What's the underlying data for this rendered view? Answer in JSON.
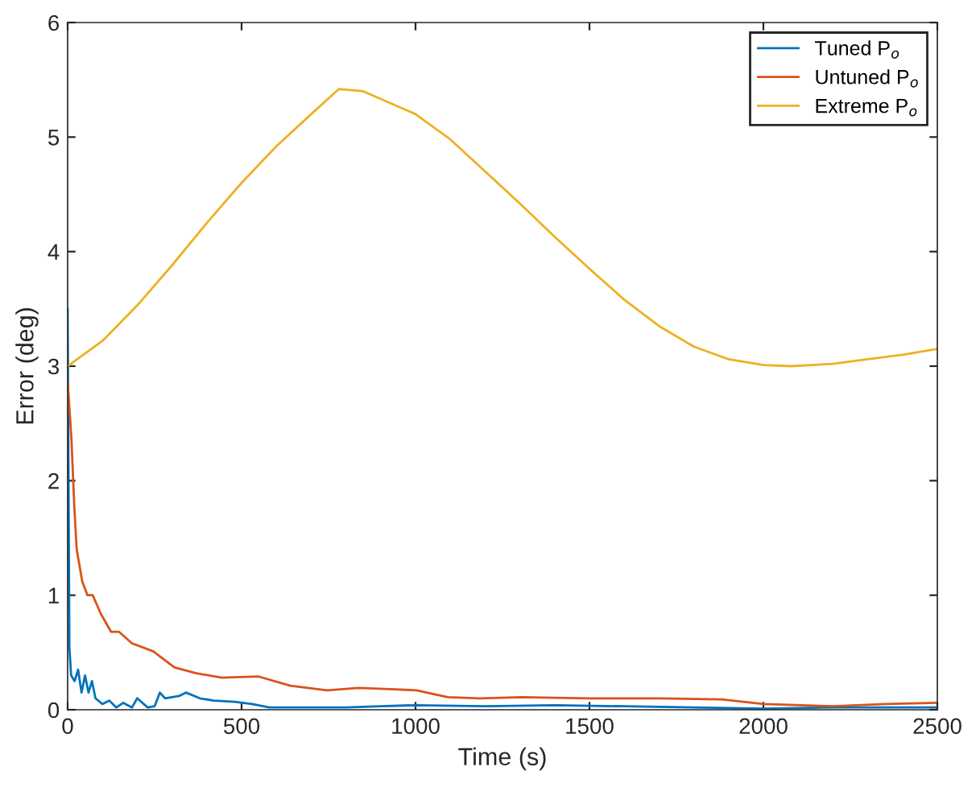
{
  "chart_data": {
    "type": "line",
    "xlabel": "Time (s)",
    "ylabel": "Error (deg)",
    "xlim": [
      0,
      2500
    ],
    "ylim": [
      0,
      6
    ],
    "xticks": [
      0,
      500,
      1000,
      1500,
      2000,
      2500
    ],
    "yticks": [
      0,
      1,
      2,
      3,
      4,
      5,
      6
    ],
    "grid": false,
    "legend": "top right",
    "line_style": "solid",
    "marker": "none",
    "series": [
      {
        "name": "Tuned P$_{o}$",
        "color": "#0072bd",
        "x": [
          0,
          5,
          10,
          20,
          30,
          40,
          50,
          60,
          70,
          80,
          100,
          120,
          140,
          160,
          185,
          200,
          230,
          250,
          265,
          280,
          320,
          340,
          380,
          420,
          480,
          530,
          580,
          700,
          800,
          900,
          1000,
          1200,
          1400,
          1600,
          1800,
          2000,
          2200,
          2500
        ],
        "values": [
          3.5,
          0.55,
          0.3,
          0.25,
          0.35,
          0.15,
          0.3,
          0.15,
          0.25,
          0.1,
          0.05,
          0.08,
          0.02,
          0.06,
          0.02,
          0.1,
          0.02,
          0.03,
          0.15,
          0.1,
          0.12,
          0.15,
          0.1,
          0.08,
          0.07,
          0.05,
          0.02,
          0.02,
          0.02,
          0.03,
          0.04,
          0.03,
          0.04,
          0.03,
          0.02,
          0.01,
          0.02,
          0.02
        ]
      },
      {
        "name": "Untuned P$_{o}$",
        "color": "#d95319",
        "x": [
          0,
          11,
          19,
          26,
          42,
          57,
          72,
          95,
          125,
          148,
          185,
          246,
          307,
          367,
          443,
          549,
          640,
          746,
          836,
          927,
          1003,
          1093,
          1184,
          1305,
          1500,
          1700,
          1880,
          2000,
          2200,
          2350,
          2500
        ],
        "values": [
          2.87,
          2.36,
          1.78,
          1.4,
          1.12,
          1.0,
          1.0,
          0.84,
          0.68,
          0.68,
          0.58,
          0.51,
          0.37,
          0.32,
          0.28,
          0.29,
          0.21,
          0.17,
          0.19,
          0.18,
          0.17,
          0.11,
          0.1,
          0.11,
          0.1,
          0.1,
          0.09,
          0.05,
          0.03,
          0.05,
          0.06
        ]
      },
      {
        "name": "Extreme P$_{o}$",
        "color": "#edb120",
        "x": [
          0,
          100,
          200,
          300,
          400,
          500,
          600,
          700,
          780,
          850,
          1000,
          1100,
          1200,
          1300,
          1400,
          1500,
          1600,
          1700,
          1800,
          1900,
          2000,
          2080,
          2200,
          2300,
          2400,
          2500
        ],
        "values": [
          3.0,
          3.22,
          3.53,
          3.88,
          4.25,
          4.6,
          4.92,
          5.2,
          5.42,
          5.4,
          5.2,
          4.98,
          4.7,
          4.42,
          4.13,
          3.85,
          3.58,
          3.35,
          3.17,
          3.06,
          3.01,
          3.0,
          3.02,
          3.06,
          3.1,
          3.15
        ]
      }
    ]
  }
}
